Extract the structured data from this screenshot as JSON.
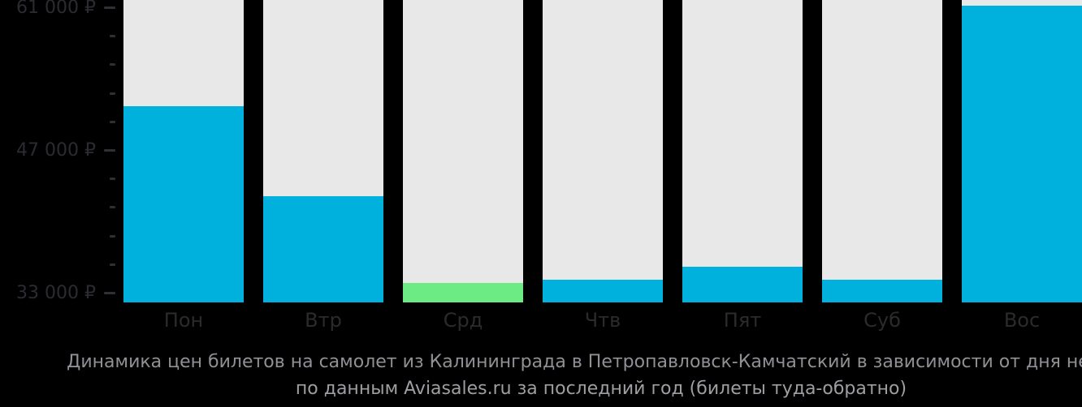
{
  "chart_data": {
    "type": "bar",
    "title": "Динамика цен билетов на самолет из Калининграда в Петропавловск-Камчатский в зависимости от дня недели",
    "subtitle": "по данным Aviasales.ru за последний год (билеты туда-обратно)",
    "categories": [
      "Пон",
      "Втр",
      "Срд",
      "Чтв",
      "Пят",
      "Суб",
      "Вос"
    ],
    "category_keys": [
      "mon",
      "tue",
      "wed",
      "thu",
      "fri",
      "sat",
      "sun"
    ],
    "values": [
      51300,
      42500,
      34000,
      34300,
      35600,
      34300,
      61200
    ],
    "unit": "₽",
    "highlight_index": 2,
    "xlabel": "",
    "ylabel": "",
    "grid": false,
    "legend": null,
    "y_axis": {
      "ticks": [
        {
          "value": 61000,
          "label": "61 000 ₽"
        },
        {
          "value": 47000,
          "label": "47 000 ₽"
        },
        {
          "value": 33000,
          "label": "33 000 ₽"
        }
      ],
      "minor_tick_values": [
        58200,
        55400,
        52600,
        49800,
        44200,
        41400,
        38600,
        35800
      ],
      "ylim": [
        33000,
        61000
      ]
    },
    "colors": {
      "background": "#000000",
      "bar": "#00b0dd",
      "highlight": "#6cea84",
      "track": "#e8e8e8",
      "axis_text": "#2b2b30",
      "tick": "#2f2f34",
      "day_text": "#2b2b2e",
      "caption_primary": "#909095",
      "caption_secondary": "#9e9ea3"
    }
  }
}
